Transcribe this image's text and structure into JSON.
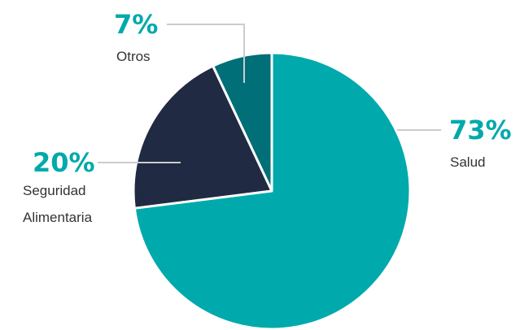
{
  "chart_data": {
    "type": "pie",
    "categories": [
      "Salud",
      "Seguridad Alimentaria",
      "Otros"
    ],
    "values": [
      73,
      20,
      7
    ],
    "value_labels": [
      "73%",
      "20%",
      "7%"
    ],
    "colors": [
      "#00a9ac",
      "#202a42",
      "#006f78"
    ],
    "label_color": "#00a9ac"
  }
}
